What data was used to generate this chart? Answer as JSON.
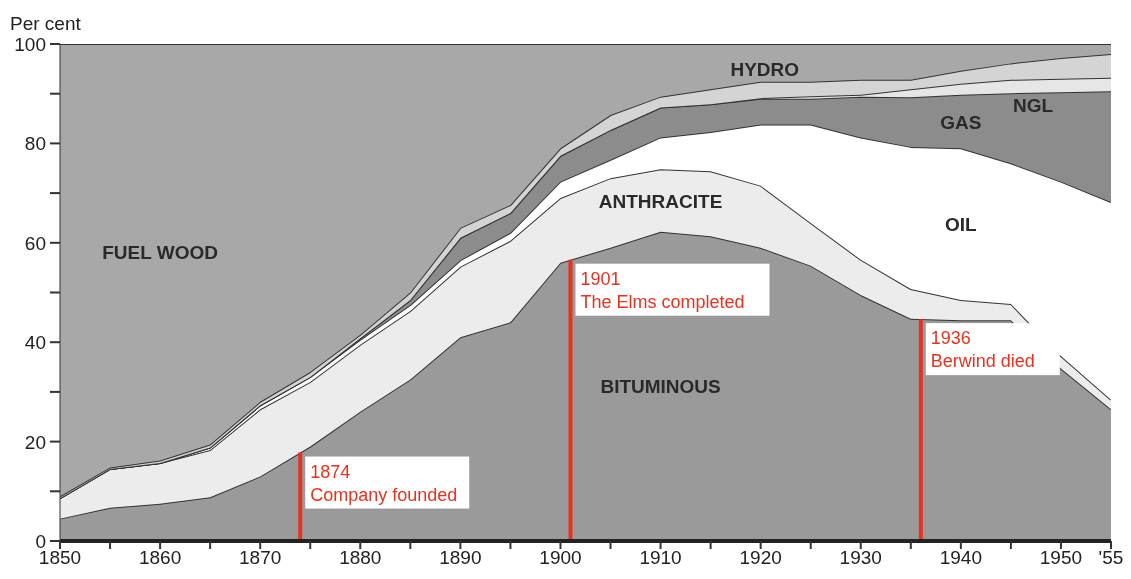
{
  "chart_data": {
    "type": "area",
    "stacked": true,
    "ylabel": "Per cent",
    "x": [
      1850,
      1855,
      1860,
      1865,
      1870,
      1875,
      1880,
      1885,
      1890,
      1895,
      1900,
      1905,
      1910,
      1915,
      1920,
      1925,
      1930,
      1935,
      1940,
      1945,
      1950,
      1955
    ],
    "series": [
      {
        "name": "BITUMINOUS",
        "color": "#9a9a9a",
        "values": [
          4.5,
          6.7,
          7.5,
          8.8,
          13,
          19,
          26,
          32.5,
          41,
          44,
          56,
          59,
          62.2,
          61.3,
          59,
          55.4,
          49.5,
          44.7,
          44.4,
          44.4,
          34.7,
          26.5
        ]
      },
      {
        "name": "ANTHRACITE",
        "color": "#ececec",
        "values": [
          4.1,
          7.8,
          8.2,
          9.5,
          13.5,
          13,
          13.5,
          13.8,
          14.2,
          16.4,
          13,
          14,
          12.6,
          13.1,
          12.5,
          8.6,
          7.1,
          6,
          4.1,
          3.3,
          2.5,
          1.9
        ]
      },
      {
        "name": "OIL",
        "color": "#ffffff",
        "values": [
          0,
          0,
          0,
          0.5,
          0.8,
          1,
          1,
          1.2,
          1.3,
          1.6,
          3.3,
          3.7,
          6.4,
          7.9,
          12.3,
          19.8,
          24.6,
          28.6,
          30.5,
          28.3,
          35.1,
          39.8
        ]
      },
      {
        "name": "GAS",
        "color": "#8c8c8c",
        "values": [
          0,
          0,
          0,
          0,
          0,
          0,
          0.3,
          1,
          4.5,
          4,
          5.2,
          6,
          6,
          5.6,
          5.2,
          5.2,
          8.2,
          10,
          10.8,
          14.1,
          18,
          22.3
        ]
      },
      {
        "name": "NGL",
        "color": "#e6e6e6",
        "values": [
          0,
          0,
          0,
          0,
          0,
          0,
          0,
          0,
          0,
          0,
          0,
          0,
          0,
          0,
          0.1,
          0.5,
          0.4,
          1.6,
          2.2,
          2.7,
          2.7,
          2.7
        ]
      },
      {
        "name": "HYDRO",
        "color": "#d4d4d4",
        "values": [
          0.4,
          0.3,
          0.5,
          0.6,
          0.7,
          1,
          0.7,
          1.5,
          2,
          1.6,
          1.5,
          3,
          2.2,
          3,
          3.3,
          2.9,
          3,
          1.9,
          2.6,
          3.3,
          4.2,
          4.8
        ]
      },
      {
        "name": "FUEL WOOD",
        "color": "#a8a8a8",
        "values": [
          91,
          85.2,
          83.8,
          80.6,
          72,
          66,
          58.5,
          50,
          37,
          32.4,
          21,
          14.3,
          10.6,
          9.1,
          7.6,
          7.6,
          7.2,
          7.2,
          5.4,
          3.9,
          2.8,
          2
        ]
      }
    ],
    "xlim": [
      1850,
      1955
    ],
    "xticks": [
      1850,
      {
        "value": 1855,
        "label": null
      },
      1860,
      {
        "value": 1865,
        "label": null
      },
      1870,
      {
        "value": 1875,
        "label": null
      },
      1880,
      {
        "value": 1885,
        "label": null
      },
      1890,
      {
        "value": 1895,
        "label": null
      },
      1900,
      {
        "value": 1905,
        "label": null
      },
      1910,
      {
        "value": 1915,
        "label": null
      },
      1920,
      {
        "value": 1925,
        "label": null
      },
      1930,
      {
        "value": 1935,
        "label": null
      },
      1940,
      {
        "value": 1945,
        "label": null
      },
      1950,
      {
        "value": 1955,
        "label": "'55"
      }
    ],
    "ylim": [
      0,
      100
    ],
    "yticks": [
      0,
      {
        "value": 10,
        "label": null
      },
      20,
      {
        "value": 30,
        "label": null
      },
      40,
      {
        "value": 50,
        "label": null
      },
      60,
      {
        "value": 70,
        "label": null
      },
      80,
      {
        "value": 90,
        "label": null
      },
      100
    ],
    "ref_lines": [
      {
        "axis": "x",
        "value": 1874,
        "label": "1874 Company founded",
        "color": "#e8321e"
      },
      {
        "axis": "x",
        "value": 1901,
        "label": "1901 The Elms completed",
        "color": "#e8321e"
      },
      {
        "axis": "x",
        "value": 1936,
        "label": "1936 Berwind died",
        "color": "#e8321e"
      }
    ]
  }
}
